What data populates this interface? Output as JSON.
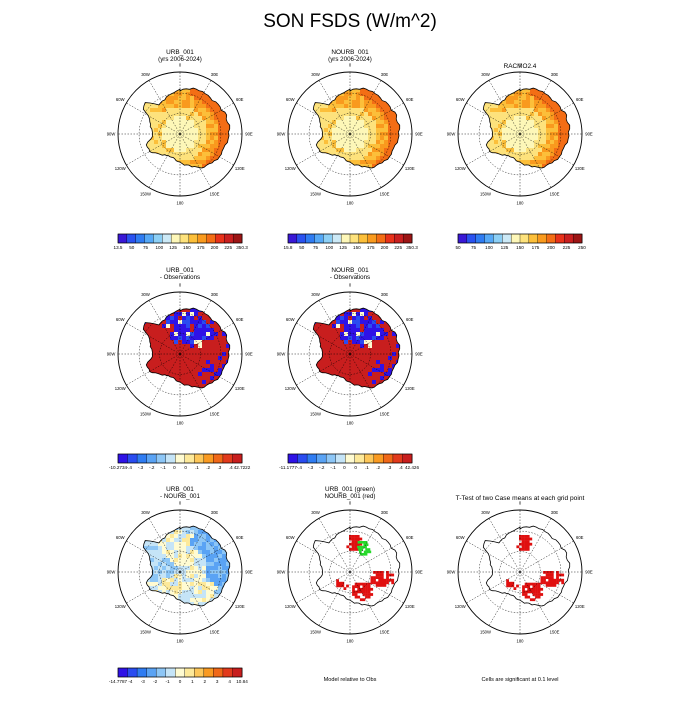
{
  "title": "SON FSDS (W/m^2)",
  "palettes": {
    "absolute": [
      "#3a18d6",
      "#2a52f0",
      "#2f7cf2",
      "#55a8f6",
      "#8ccff5",
      "#cce9f6",
      "#fdf7b8",
      "#fde27c",
      "#fcbf3a",
      "#f99a1e",
      "#f36d15",
      "#e8321a",
      "#c91f1f",
      "#9c1515"
    ],
    "difference": [
      "#2f12e6",
      "#2a4cf0",
      "#2f7cf2",
      "#5aa3f4",
      "#8dc6f6",
      "#c5e4f7",
      "#fffbd2",
      "#fde99a",
      "#fdc75a",
      "#f99a22",
      "#f06818",
      "#e23a1c",
      "#c81e1e"
    ]
  },
  "chart_data": [
    {
      "type": "heatmap",
      "title": "URB_001",
      "subtitle": "(yrs 2006-2024)",
      "field": "absolute",
      "longitude_labels": [
        "0",
        "30E",
        "60E",
        "90E",
        "120E",
        "150E",
        "180",
        "150W",
        "120W",
        "90W",
        "60W",
        "30W"
      ],
      "colorbar": {
        "palette": "absolute",
        "labels": [
          "13.5",
          "50",
          "75",
          "100",
          "125",
          "150",
          "175",
          "200",
          "225",
          "350.3"
        ]
      }
    },
    {
      "type": "heatmap",
      "title": "NOURB_001",
      "subtitle": "(yrs 2006-2024)",
      "field": "absolute",
      "longitude_labels": [
        "0",
        "30E",
        "60E",
        "90E",
        "120E",
        "150E",
        "180",
        "150W",
        "120W",
        "90W",
        "60W",
        "30W"
      ],
      "colorbar": {
        "palette": "absolute",
        "labels": [
          "15.8",
          "50",
          "75",
          "100",
          "125",
          "150",
          "175",
          "200",
          "225",
          "350.3"
        ]
      }
    },
    {
      "type": "heatmap",
      "title": "RACMO2.4",
      "subtitle": "",
      "field": "absolute",
      "longitude_labels": [
        "0",
        "30E",
        "60E",
        "90E",
        "120E",
        "150E",
        "180",
        "150W",
        "120W",
        "90W",
        "60W",
        "30W"
      ],
      "colorbar": {
        "palette": "absolute",
        "labels": [
          "50",
          "75",
          "100",
          "125",
          "150",
          "175",
          "200",
          "225",
          "250"
        ]
      }
    },
    {
      "type": "heatmap",
      "title": "URB_001",
      "subtitle": "- Observations",
      "field": "bias",
      "longitude_labels": [
        "0",
        "30E",
        "60E",
        "90E",
        "120E",
        "150E",
        "180",
        "150W",
        "120W",
        "90W",
        "60W",
        "30W"
      ],
      "colorbar": {
        "palette": "difference",
        "labels": [
          "-10.2734",
          "-.4",
          "-.3",
          "-.2",
          "-.1",
          "0",
          "0",
          ".1",
          ".2",
          ".3",
          ".4",
          "42.7222"
        ]
      }
    },
    {
      "type": "heatmap",
      "title": "NOURB_001",
      "subtitle": "- Observations",
      "field": "bias",
      "longitude_labels": [
        "0",
        "30E",
        "60E",
        "90E",
        "120E",
        "150E",
        "180",
        "150W",
        "120W",
        "90W",
        "60W",
        "30W"
      ],
      "colorbar": {
        "palette": "difference",
        "labels": [
          "-11.1777",
          "-.4",
          "-.3",
          "-.2",
          "-.1",
          "0",
          "0",
          ".1",
          ".2",
          ".3",
          ".4",
          "42.426"
        ]
      }
    },
    {
      "type": "heatmap",
      "title": "URB_001",
      "subtitle": "- NOURB_001",
      "field": "diff",
      "longitude_labels": [
        "0",
        "30E",
        "60E",
        "90E",
        "120E",
        "150E",
        "180",
        "150W",
        "120W",
        "90W",
        "60W",
        "30W"
      ],
      "colorbar": {
        "palette": "difference",
        "labels": [
          "-14.7787",
          "-4",
          "-3",
          "-2",
          "-1",
          "0",
          "1",
          "2",
          "3",
          "4",
          "10.84"
        ]
      }
    },
    {
      "type": "heatmap",
      "title": "URB_001 (green)",
      "subtitle": "NOURB_001 (red)",
      "field": "significance2",
      "longitude_labels": [
        "0",
        "30E",
        "60E",
        "90E",
        "120E",
        "150E",
        "180",
        "150W",
        "120W",
        "90W",
        "60W",
        "30W"
      ],
      "footnote": "Model relative to Obs"
    },
    {
      "type": "heatmap",
      "title": "T-Test of two Case means at each grid point",
      "subtitle": "",
      "field": "significance1",
      "longitude_labels": [
        "0",
        "30E",
        "60E",
        "90E",
        "120E",
        "150E",
        "180",
        "150W",
        "120W",
        "90W",
        "60W",
        "30W"
      ],
      "footnote": "Cells are significant at 0.1 level"
    }
  ]
}
